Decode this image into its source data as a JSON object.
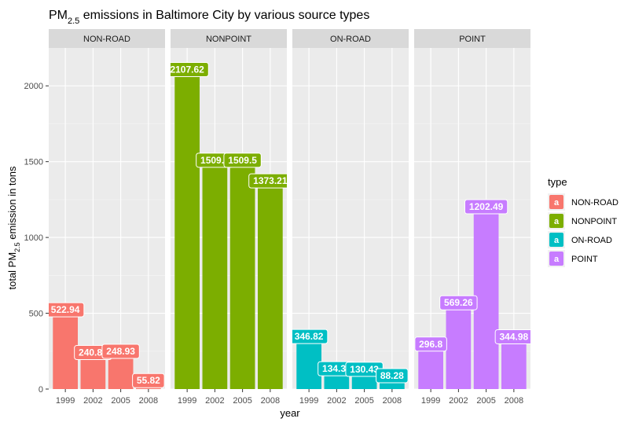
{
  "chart_data": {
    "type": "bar",
    "title_prefix": "PM",
    "title_sub": "2.5",
    "title_suffix": " emissions in Baltimore City by various source types",
    "xlabel": "year",
    "ylabel_prefix": "total PM",
    "ylabel_sub": "2.5",
    "ylabel_suffix": " emission in tons",
    "categories": [
      "1999",
      "2002",
      "2005",
      "2008"
    ],
    "ylim": [
      0,
      2250
    ],
    "yticks": [
      0,
      500,
      1000,
      1500,
      2000
    ],
    "grid": true,
    "legend_position": "right",
    "legend_title": "type",
    "legend_key_glyph": "a",
    "facets": [
      {
        "name": "NON-ROAD",
        "color": "#F8766D",
        "values": [
          522.94,
          240.85,
          248.93,
          55.82
        ],
        "labels": [
          "522.94",
          "240.85",
          "248.93",
          "55.82"
        ]
      },
      {
        "name": "NONPOINT",
        "color": "#7CAE00",
        "values": [
          2107.62,
          1509.5,
          1509.5,
          1373.21
        ],
        "labels": [
          "2107.62",
          "1509.5",
          "1509.5",
          "1373.21"
        ]
      },
      {
        "name": "ON-ROAD",
        "color": "#00BFC4",
        "values": [
          346.82,
          134.31,
          130.43,
          88.28
        ],
        "labels": [
          "346.82",
          "134.31",
          "130.43",
          "88.28"
        ]
      },
      {
        "name": "POINT",
        "color": "#C77CFF",
        "values": [
          296.8,
          569.26,
          1202.49,
          344.98
        ],
        "labels": [
          "296.8",
          "569.26",
          "1202.49",
          "344.98"
        ]
      }
    ]
  }
}
